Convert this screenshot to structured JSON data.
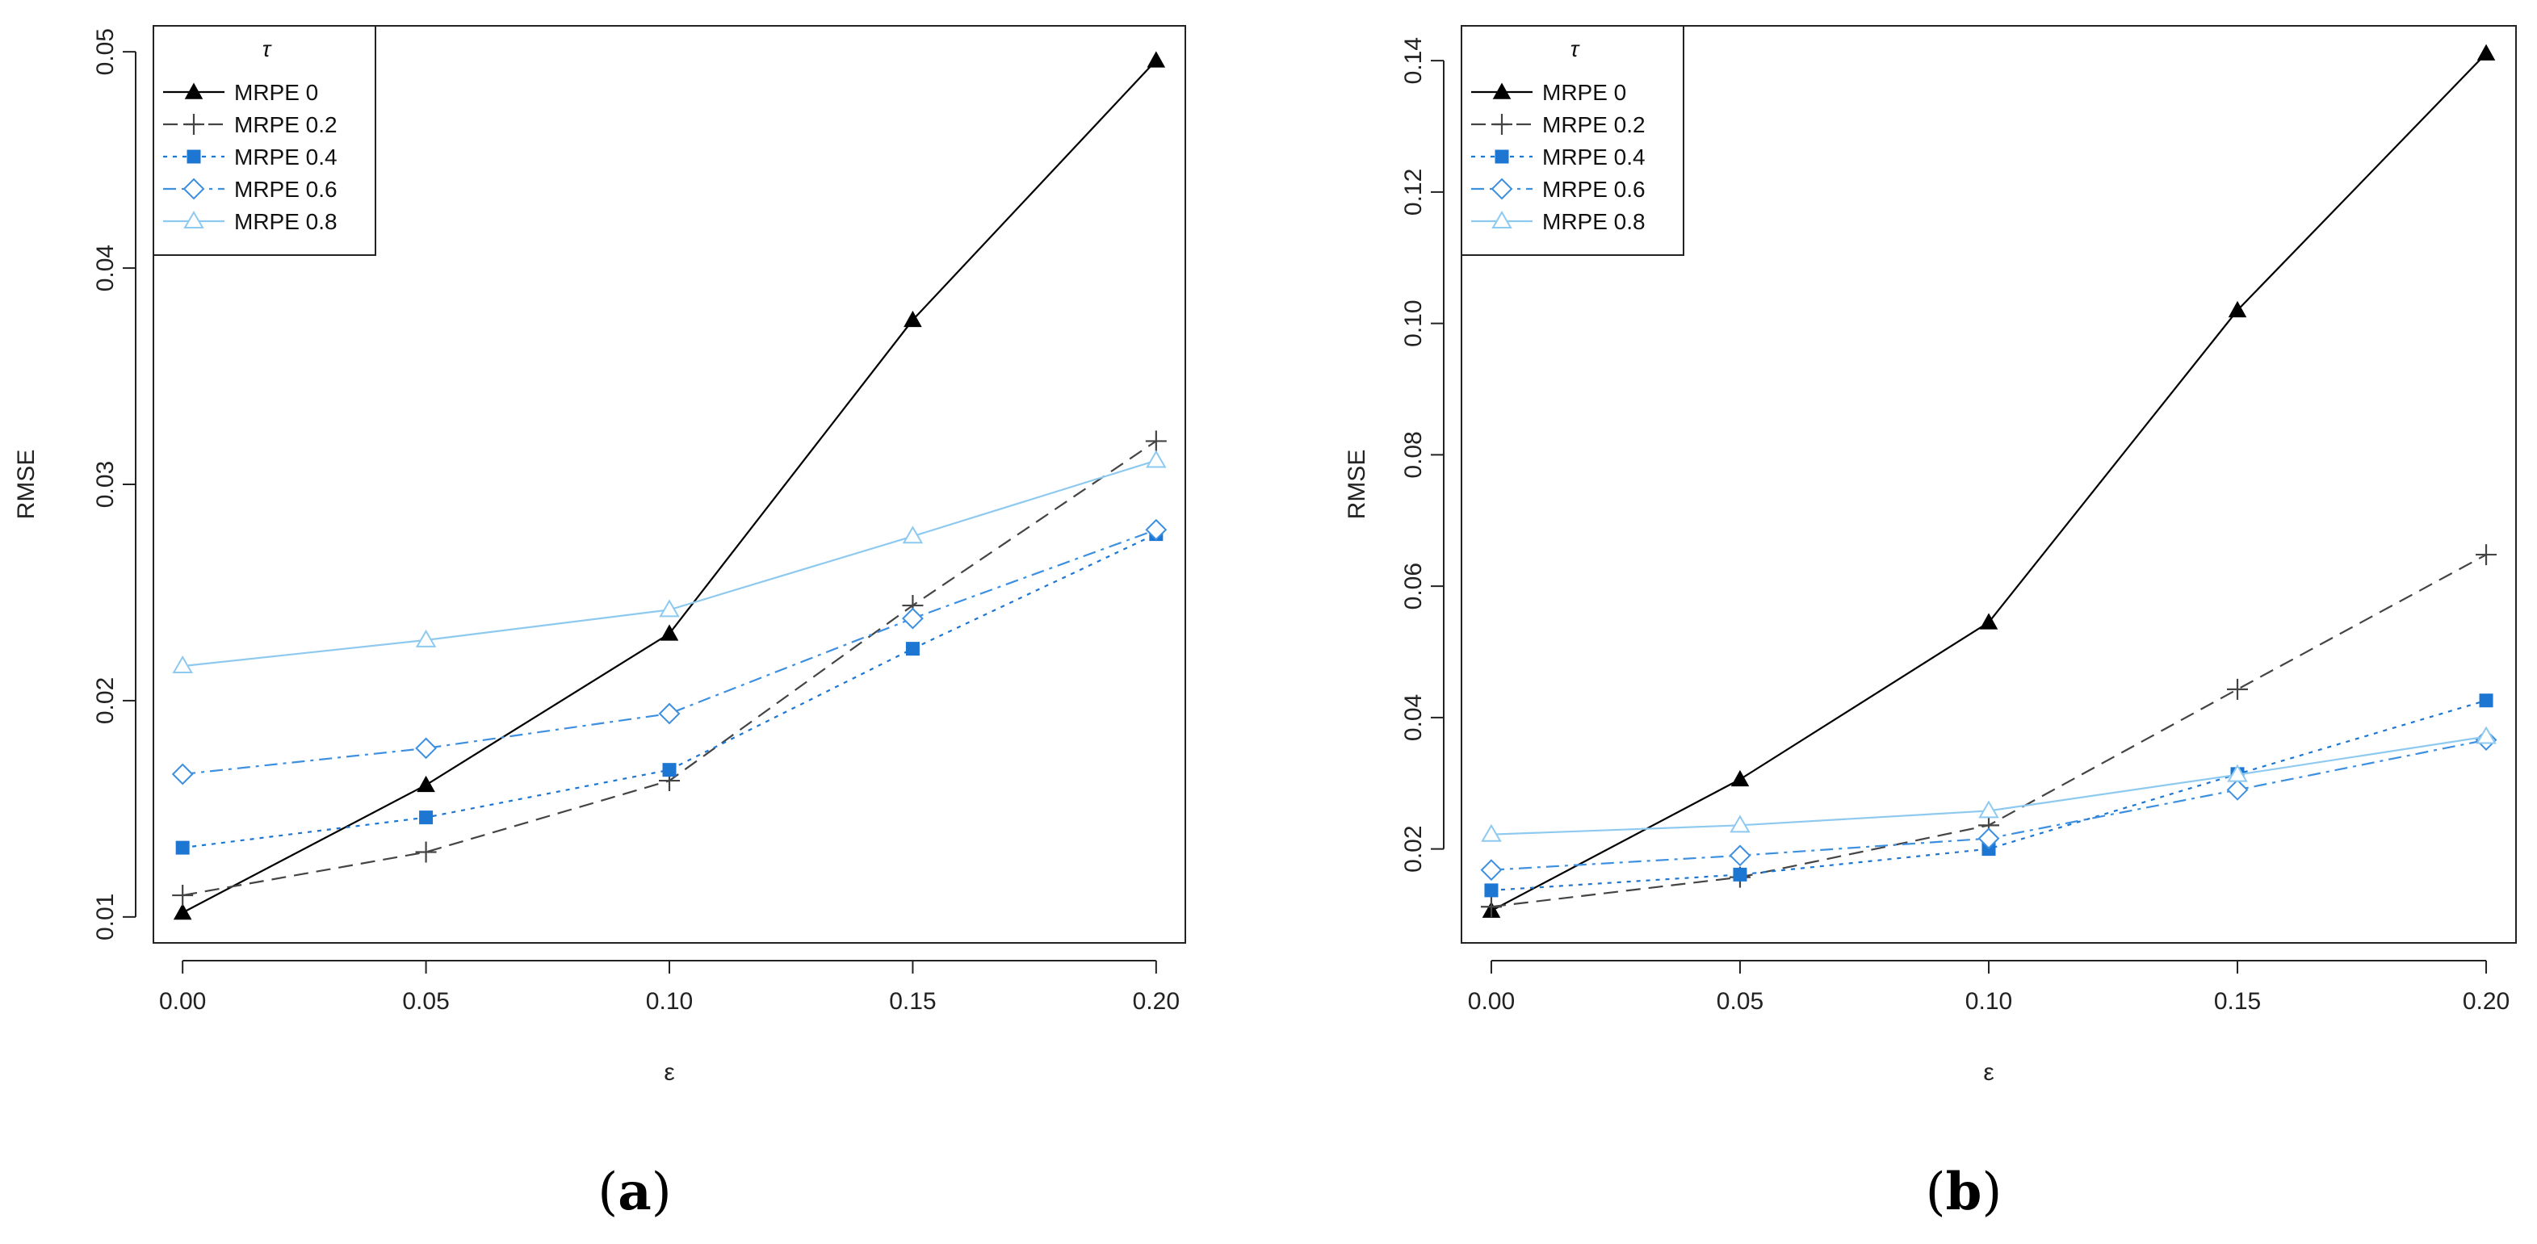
{
  "chart_data": [
    {
      "id": "a",
      "type": "line",
      "caption_letter": "a",
      "xlabel": "ε",
      "ylabel": "RMSE",
      "legend_title": "τ",
      "legend_position": "top-left",
      "x": [
        0.0,
        0.05,
        0.1,
        0.15,
        0.2
      ],
      "x_ticks": [
        "0.00",
        "0.05",
        "0.10",
        "0.15",
        "0.20"
      ],
      "xlim": [
        -0.006,
        0.206
      ],
      "y_ticks": [
        0.01,
        0.02,
        0.03,
        0.04,
        0.05
      ],
      "y_tick_labels": [
        "0.01",
        "0.02",
        "0.03",
        "0.04",
        "0.05"
      ],
      "ylim": [
        0.0088,
        0.0512
      ],
      "series": [
        {
          "name": "MRPE 0",
          "style": "solid",
          "marker": "filled-triangle",
          "color": "#000000",
          "values": [
            0.0102,
            0.0161,
            0.0231,
            0.0376,
            0.0496
          ]
        },
        {
          "name": "MRPE 0.2",
          "style": "dashed",
          "marker": "plus",
          "color": "#444444",
          "values": [
            0.011,
            0.013,
            0.0163,
            0.0244,
            0.032
          ]
        },
        {
          "name": "MRPE 0.4",
          "style": "dotted",
          "marker": "filled-square",
          "color": "#1c76d2",
          "values": [
            0.0132,
            0.0146,
            0.0168,
            0.0224,
            0.0277
          ]
        },
        {
          "name": "MRPE 0.6",
          "style": "dotdash",
          "marker": "open-diamond",
          "color": "#3d8fe0",
          "values": [
            0.0166,
            0.0178,
            0.0194,
            0.0238,
            0.0279
          ]
        },
        {
          "name": "MRPE 0.8",
          "style": "solid",
          "marker": "open-triangle",
          "color": "#8ec9ef",
          "values": [
            0.0216,
            0.0228,
            0.0242,
            0.0276,
            0.0311
          ]
        }
      ]
    },
    {
      "id": "b",
      "type": "line",
      "caption_letter": "b",
      "xlabel": "ε",
      "ylabel": "RMSE",
      "legend_title": "τ",
      "legend_position": "top-left",
      "x": [
        0.0,
        0.05,
        0.1,
        0.15,
        0.2
      ],
      "x_ticks": [
        "0.00",
        "0.05",
        "0.10",
        "0.15",
        "0.20"
      ],
      "xlim": [
        -0.006,
        0.206
      ],
      "y_ticks": [
        0.02,
        0.04,
        0.06,
        0.08,
        0.1,
        0.12,
        0.14
      ],
      "y_tick_labels": [
        "0.02",
        "0.04",
        "0.06",
        "0.08",
        "0.10",
        "0.12",
        "0.14"
      ],
      "ylim": [
        0.0057,
        0.1453
      ],
      "series": [
        {
          "name": "MRPE 0",
          "style": "solid",
          "marker": "filled-triangle",
          "color": "#000000",
          "values": [
            0.0106,
            0.0306,
            0.0545,
            0.102,
            0.1411
          ]
        },
        {
          "name": "MRPE 0.2",
          "style": "dashed",
          "marker": "plus",
          "color": "#444444",
          "values": [
            0.0112,
            0.0157,
            0.0236,
            0.0443,
            0.0648
          ]
        },
        {
          "name": "MRPE 0.4",
          "style": "dotted",
          "marker": "filled-square",
          "color": "#1c76d2",
          "values": [
            0.0137,
            0.0161,
            0.02,
            0.0314,
            0.0426
          ]
        },
        {
          "name": "MRPE 0.6",
          "style": "dotdash",
          "marker": "open-diamond",
          "color": "#3d8fe0",
          "values": [
            0.0168,
            0.019,
            0.0216,
            0.029,
            0.0366
          ]
        },
        {
          "name": "MRPE 0.8",
          "style": "solid",
          "marker": "open-triangle",
          "color": "#8ec9ef",
          "values": [
            0.0222,
            0.0236,
            0.0258,
            0.0313,
            0.0371
          ]
        }
      ]
    }
  ]
}
